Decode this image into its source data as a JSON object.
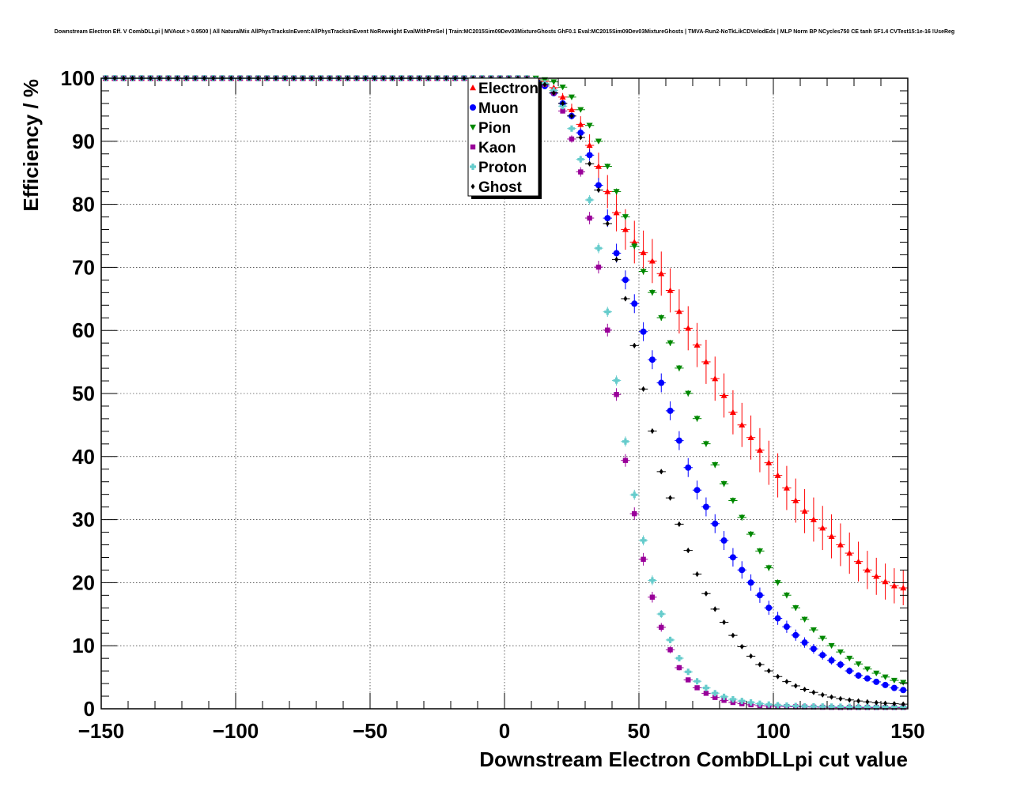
{
  "chart_data": {
    "type": "scatter",
    "title": "Downstream Electron Eff. V CombDLLpi | MVAout > 0.9500 | All NaturalMix AllPhysTracksInEvent:AllPhysTracksInEvent NoReweight EvalWithPreSel | Train:MC2015Sim09Dev03MixtureGhosts GhF0.1 Eval:MC2015Sim09Dev03MixtureGhosts | TMVA-Run2-NoTkLikCDVelodEdx | MLP Norm BP NCycles750 CE tanh SF1.4 CVTest15:1e-16 !UseReg",
    "xlabel": "Downstream Electron CombDLLpi cut value",
    "ylabel": "Efficiency / %",
    "xlim": [
      -150,
      150
    ],
    "ylim": [
      0,
      100
    ],
    "xticks": [
      -150,
      -100,
      -50,
      0,
      50,
      100,
      150
    ],
    "xtick_labels": [
      "−150",
      "−100",
      "−50",
      "0",
      "50",
      "100",
      "150"
    ],
    "yticks": [
      0,
      10,
      20,
      30,
      40,
      50,
      60,
      70,
      80,
      90,
      100
    ],
    "ytick_labels": [
      "0",
      "10",
      "20",
      "30",
      "40",
      "50",
      "60",
      "70",
      "80",
      "90",
      "100"
    ],
    "grid": true,
    "legend_position": "top-center",
    "x_step": 3.333,
    "series": [
      {
        "name": "Electron",
        "color": "#ff0000",
        "marker": "triangle-up",
        "curve": [
          [
            -150,
            100
          ],
          [
            10,
            100
          ],
          [
            15,
            99.5
          ],
          [
            20,
            98
          ],
          [
            25,
            95
          ],
          [
            28,
            93
          ],
          [
            31,
            90
          ],
          [
            35,
            86
          ],
          [
            40,
            80
          ],
          [
            45,
            76
          ],
          [
            50,
            73
          ],
          [
            55,
            71
          ],
          [
            60,
            68
          ],
          [
            65,
            63
          ],
          [
            70,
            59
          ],
          [
            75,
            55
          ],
          [
            80,
            51
          ],
          [
            85,
            47
          ],
          [
            90,
            44
          ],
          [
            95,
            41
          ],
          [
            100,
            38
          ],
          [
            105,
            35
          ],
          [
            110,
            32
          ],
          [
            115,
            30
          ],
          [
            120,
            28
          ],
          [
            125,
            26
          ],
          [
            130,
            24
          ],
          [
            135,
            22
          ],
          [
            140,
            20.5
          ],
          [
            145,
            19.5
          ],
          [
            150,
            19
          ]
        ],
        "err_max": 3.5
      },
      {
        "name": "Muon",
        "color": "#0000ff",
        "marker": "circle",
        "curve": [
          [
            -150,
            100
          ],
          [
            8,
            100
          ],
          [
            12,
            99.5
          ],
          [
            16,
            98.5
          ],
          [
            20,
            97
          ],
          [
            25,
            94
          ],
          [
            30,
            90
          ],
          [
            33,
            86
          ],
          [
            37,
            80
          ],
          [
            40,
            75
          ],
          [
            43,
            70
          ],
          [
            47,
            66
          ],
          [
            50,
            62
          ],
          [
            53,
            58
          ],
          [
            56,
            54
          ],
          [
            60,
            50
          ],
          [
            63,
            45
          ],
          [
            67,
            40
          ],
          [
            70,
            36
          ],
          [
            75,
            32
          ],
          [
            80,
            28
          ],
          [
            85,
            24
          ],
          [
            90,
            21
          ],
          [
            95,
            18
          ],
          [
            100,
            15
          ],
          [
            105,
            13
          ],
          [
            110,
            11
          ],
          [
            115,
            9.5
          ],
          [
            120,
            8
          ],
          [
            125,
            7
          ],
          [
            130,
            5.5
          ],
          [
            135,
            4.8
          ],
          [
            140,
            4
          ],
          [
            145,
            3.3
          ],
          [
            150,
            2.8
          ]
        ],
        "err_max": 1.5
      },
      {
        "name": "Pion",
        "color": "#008800",
        "marker": "triangle-down",
        "curve": [
          [
            -150,
            100
          ],
          [
            12,
            100
          ],
          [
            18,
            99.5
          ],
          [
            22,
            98.5
          ],
          [
            27,
            96
          ],
          [
            31,
            93
          ],
          [
            35,
            90
          ],
          [
            40,
            84
          ],
          [
            45,
            78
          ],
          [
            50,
            71
          ],
          [
            55,
            66
          ],
          [
            60,
            60
          ],
          [
            65,
            54
          ],
          [
            70,
            48
          ],
          [
            75,
            42
          ],
          [
            80,
            37
          ],
          [
            85,
            33
          ],
          [
            90,
            29
          ],
          [
            95,
            25
          ],
          [
            100,
            21
          ],
          [
            105,
            18
          ],
          [
            110,
            15
          ],
          [
            115,
            12.5
          ],
          [
            120,
            10.5
          ],
          [
            125,
            9
          ],
          [
            130,
            7.5
          ],
          [
            135,
            6.3
          ],
          [
            140,
            5.3
          ],
          [
            145,
            4.5
          ],
          [
            150,
            4
          ]
        ],
        "err_max": 0.5
      },
      {
        "name": "Kaon",
        "color": "#990099",
        "marker": "square",
        "curve": [
          [
            -150,
            100
          ],
          [
            10,
            100
          ],
          [
            15,
            99
          ],
          [
            20,
            97
          ],
          [
            23,
            93
          ],
          [
            26,
            89
          ],
          [
            29,
            84
          ],
          [
            32,
            77
          ],
          [
            35,
            70
          ],
          [
            38,
            61
          ],
          [
            41,
            52
          ],
          [
            44,
            42
          ],
          [
            47,
            34
          ],
          [
            50,
            27
          ],
          [
            53,
            21
          ],
          [
            56,
            16
          ],
          [
            59,
            12
          ],
          [
            62,
            9
          ],
          [
            65,
            6.5
          ],
          [
            68,
            4.7
          ],
          [
            72,
            3.2
          ],
          [
            76,
            2.2
          ],
          [
            80,
            1.5
          ],
          [
            85,
            1
          ],
          [
            90,
            0.7
          ],
          [
            95,
            0.5
          ],
          [
            100,
            0.4
          ],
          [
            110,
            0.3
          ],
          [
            125,
            0.2
          ]
        ],
        "err_max": 1.0
      },
      {
        "name": "Proton",
        "color": "#66cccc",
        "marker": "cross",
        "curve": [
          [
            -150,
            100
          ],
          [
            10,
            100
          ],
          [
            15,
            99.2
          ],
          [
            20,
            97.5
          ],
          [
            23,
            94
          ],
          [
            26,
            91
          ],
          [
            29,
            86
          ],
          [
            32,
            80
          ],
          [
            35,
            73
          ],
          [
            38,
            64
          ],
          [
            41,
            54
          ],
          [
            44,
            45
          ],
          [
            47,
            37
          ],
          [
            50,
            30
          ],
          [
            53,
            24
          ],
          [
            56,
            18.5
          ],
          [
            59,
            14
          ],
          [
            62,
            10.5
          ],
          [
            65,
            8
          ],
          [
            68,
            6
          ],
          [
            72,
            4.2
          ],
          [
            76,
            3
          ],
          [
            80,
            2.1
          ],
          [
            85,
            1.5
          ],
          [
            90,
            1.1
          ],
          [
            95,
            0.8
          ],
          [
            100,
            0.6
          ],
          [
            110,
            0.4
          ],
          [
            130,
            0.3
          ]
        ],
        "err_max": 0.8
      },
      {
        "name": "Ghost",
        "color": "#000000",
        "marker": "diamond",
        "curve": [
          [
            -150,
            100
          ],
          [
            10,
            100
          ],
          [
            15,
            99
          ],
          [
            20,
            97
          ],
          [
            25,
            94
          ],
          [
            28,
            91
          ],
          [
            32,
            86
          ],
          [
            36,
            81
          ],
          [
            40,
            74
          ],
          [
            43,
            69
          ],
          [
            46,
            63
          ],
          [
            49,
            56
          ],
          [
            52,
            50
          ],
          [
            55,
            44
          ],
          [
            58,
            38
          ],
          [
            62,
            33
          ],
          [
            66,
            28
          ],
          [
            70,
            23
          ],
          [
            74,
            19
          ],
          [
            78,
            16
          ],
          [
            82,
            13.5
          ],
          [
            86,
            11
          ],
          [
            90,
            9
          ],
          [
            95,
            7
          ],
          [
            100,
            5.5
          ],
          [
            105,
            4.3
          ],
          [
            110,
            3.3
          ],
          [
            115,
            2.6
          ],
          [
            120,
            2
          ],
          [
            125,
            1.6
          ],
          [
            130,
            1.3
          ],
          [
            140,
            0.9
          ],
          [
            150,
            0.7
          ]
        ],
        "err_max": 0.4
      }
    ]
  }
}
